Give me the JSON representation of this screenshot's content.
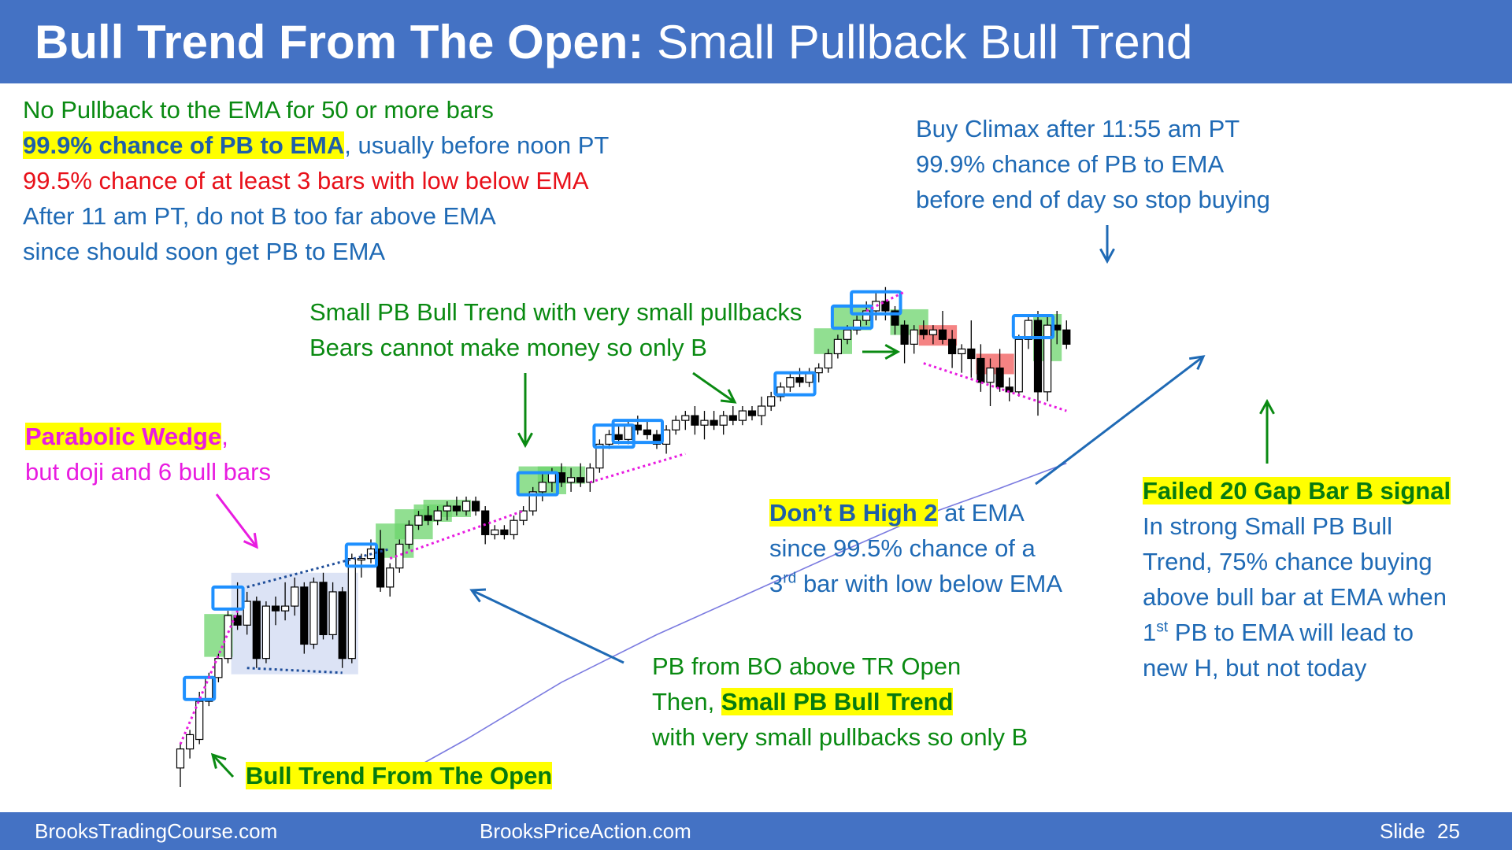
{
  "header": {
    "title_bold": "Bull Trend From The Open:",
    "title_rest": " Small Pullback Bull Trend"
  },
  "footer": {
    "left": "BrooksTradingCourse.com",
    "center": "BrooksPriceAction.com",
    "slide_label": "Slide",
    "slide_number": "25"
  },
  "notes": {
    "top_left": {
      "line1": "No Pullback to the EMA for 50 or more bars",
      "line2_hl": "99.9% chance of PB to EMA",
      "line2_rest": ", usually before noon PT",
      "line3": "99.5% chance of at least 3 bars with low below EMA",
      "line4": "After 11 am PT, do not B too far above EMA",
      "line5": "since should soon get PB to EMA"
    },
    "buy_climax": {
      "line1": "Buy Climax after 11:55 am PT",
      "line2": "99.9% chance of PB to EMA",
      "line3": "before end of day so stop buying"
    },
    "small_pb": {
      "line1": "Small PB Bull Trend with very small pullbacks",
      "line2": "Bears cannot make money so only B"
    },
    "parabolic": {
      "hl": "Parabolic Wedge",
      "comma": ",",
      "line2": "but doji and 6 bull bars"
    },
    "bull_open": {
      "hl": "Bull Trend From The Open"
    },
    "pb_from_bo": {
      "line1": "PB from BO above TR Open",
      "line2_pre": "Then, ",
      "line2_hl": "Small PB Bull Trend",
      "line3": "with very small pullbacks so only B"
    },
    "dont_b": {
      "hl": "Don’t B High 2",
      "line1_rest": " at EMA",
      "line2": "since 99.5% chance of a",
      "line3_num": "3",
      "line3_sup": "rd",
      "line3_rest": " bar with low below EMA"
    },
    "failed": {
      "hl": "Failed 20 Gap Bar B signal",
      "line2": "In strong Small PB Bull",
      "line3": "Trend, 75% chance buying",
      "line4": "above bull bar at EMA when",
      "line5_num": "1",
      "line5_sup": "st",
      "line5_rest": " PB to EMA will lead to",
      "line6": "new H, but not today"
    }
  },
  "colors": {
    "header_bg": "#4472C4",
    "ema": "#7B7BE0",
    "signal_box": "#1E90FF",
    "green_zone": "#6CD46C",
    "red_zone": "#F25A5A",
    "tr_box": "#DCE3F5",
    "wedge_line": "#E81CE0",
    "arrow_green": "#0A8A12",
    "arrow_blue": "#1F6AB5"
  },
  "chart_data": {
    "type": "candlestick",
    "title": "",
    "xlabel": "",
    "ylabel": "",
    "bars_ohlc": [
      [
        4,
        9,
        0,
        8
      ],
      [
        8,
        12,
        6,
        11
      ],
      [
        10,
        20,
        9,
        18
      ],
      [
        18,
        24,
        17,
        23
      ],
      [
        23,
        28,
        22,
        27
      ],
      [
        27,
        37,
        26,
        36
      ],
      [
        36,
        43,
        33,
        34
      ],
      [
        34,
        41,
        32,
        39
      ],
      [
        39,
        40,
        25,
        27
      ],
      [
        27,
        39,
        26,
        38
      ],
      [
        38,
        40,
        34,
        37
      ],
      [
        37,
        43,
        35,
        38
      ],
      [
        38,
        44,
        36,
        42
      ],
      [
        42,
        43,
        28,
        30
      ],
      [
        30,
        44,
        29,
        43
      ],
      [
        43,
        45,
        31,
        32
      ],
      [
        32,
        43,
        31,
        41
      ],
      [
        41,
        42,
        25,
        27
      ],
      [
        27,
        49,
        26,
        48
      ],
      [
        48,
        49,
        44,
        48
      ],
      [
        48,
        52,
        47,
        50
      ],
      [
        50,
        54,
        41,
        42
      ],
      [
        42,
        47,
        40,
        46
      ],
      [
        46,
        52,
        45,
        51
      ],
      [
        51,
        56,
        50,
        55
      ],
      [
        55,
        58,
        54,
        57
      ],
      [
        57,
        59,
        55,
        56
      ],
      [
        56,
        59,
        55,
        58
      ],
      [
        58,
        60,
        56,
        59
      ],
      [
        59,
        61,
        57,
        58
      ],
      [
        58,
        61,
        57,
        60
      ],
      [
        60,
        61,
        57,
        58
      ],
      [
        58,
        59,
        51,
        53
      ],
      [
        53,
        55,
        52,
        54
      ],
      [
        54,
        55,
        52,
        53
      ],
      [
        53,
        57,
        52,
        56
      ],
      [
        56,
        59,
        55,
        58
      ],
      [
        58,
        63,
        57,
        62
      ],
      [
        62,
        66,
        60,
        64
      ],
      [
        64,
        67,
        62,
        66
      ],
      [
        66,
        68,
        63,
        64
      ],
      [
        64,
        67,
        62,
        65
      ],
      [
        65,
        68,
        63,
        64
      ],
      [
        64,
        68,
        62,
        67
      ],
      [
        67,
        73,
        66,
        72
      ],
      [
        72,
        75,
        71,
        74
      ],
      [
        74,
        76,
        72,
        73
      ],
      [
        73,
        77,
        72,
        76
      ],
      [
        76,
        78,
        74,
        75
      ],
      [
        75,
        77,
        73,
        74
      ],
      [
        74,
        75,
        71,
        72
      ],
      [
        72,
        76,
        70,
        75
      ],
      [
        75,
        78,
        74,
        77
      ],
      [
        77,
        79,
        75,
        78
      ],
      [
        78,
        80,
        74,
        76
      ],
      [
        76,
        79,
        73,
        77
      ],
      [
        77,
        79,
        75,
        76
      ],
      [
        76,
        79,
        74,
        78
      ],
      [
        78,
        80,
        76,
        77
      ],
      [
        77,
        80,
        76,
        79
      ],
      [
        79,
        80,
        77,
        78
      ],
      [
        78,
        82,
        76,
        80
      ],
      [
        80,
        83,
        79,
        82
      ],
      [
        82,
        85,
        81,
        84
      ],
      [
        84,
        87,
        83,
        86
      ],
      [
        86,
        88,
        84,
        85
      ],
      [
        85,
        88,
        84,
        87
      ],
      [
        87,
        89,
        85,
        88
      ],
      [
        88,
        92,
        87,
        91
      ],
      [
        91,
        95,
        90,
        94
      ],
      [
        94,
        97,
        93,
        96
      ],
      [
        96,
        99,
        95,
        98
      ],
      [
        98,
        102,
        97,
        100
      ],
      [
        100,
        104,
        98,
        102
      ],
      [
        102,
        105,
        98,
        100
      ],
      [
        100,
        101,
        95,
        97
      ],
      [
        97,
        98,
        89,
        93
      ],
      [
        93,
        97,
        91,
        96
      ],
      [
        96,
        98,
        94,
        95
      ],
      [
        95,
        97,
        93,
        96
      ],
      [
        96,
        100,
        93,
        94
      ],
      [
        94,
        96,
        88,
        91
      ],
      [
        91,
        93,
        87,
        92
      ],
      [
        92,
        98,
        86,
        90
      ],
      [
        90,
        93,
        83,
        85
      ],
      [
        85,
        90,
        80,
        88
      ],
      [
        88,
        92,
        83,
        84
      ],
      [
        84,
        86,
        81,
        83
      ],
      [
        83,
        95,
        82,
        94
      ],
      [
        94,
        99,
        92,
        98
      ],
      [
        98,
        100,
        78,
        83
      ],
      [
        83,
        99,
        81,
        97
      ],
      [
        97,
        100,
        93,
        96
      ],
      [
        96,
        98,
        92,
        93
      ]
    ],
    "ema": [
      [
        21,
        0
      ],
      [
        30,
        10
      ],
      [
        40,
        22
      ],
      [
        50,
        32
      ],
      [
        60,
        41
      ],
      [
        70,
        50
      ],
      [
        78,
        57
      ],
      [
        85,
        62
      ],
      [
        93,
        68
      ]
    ],
    "notes": "Gap between ema values and bar values reflects price ranges read visually; no axis scale is printed on the chart."
  }
}
